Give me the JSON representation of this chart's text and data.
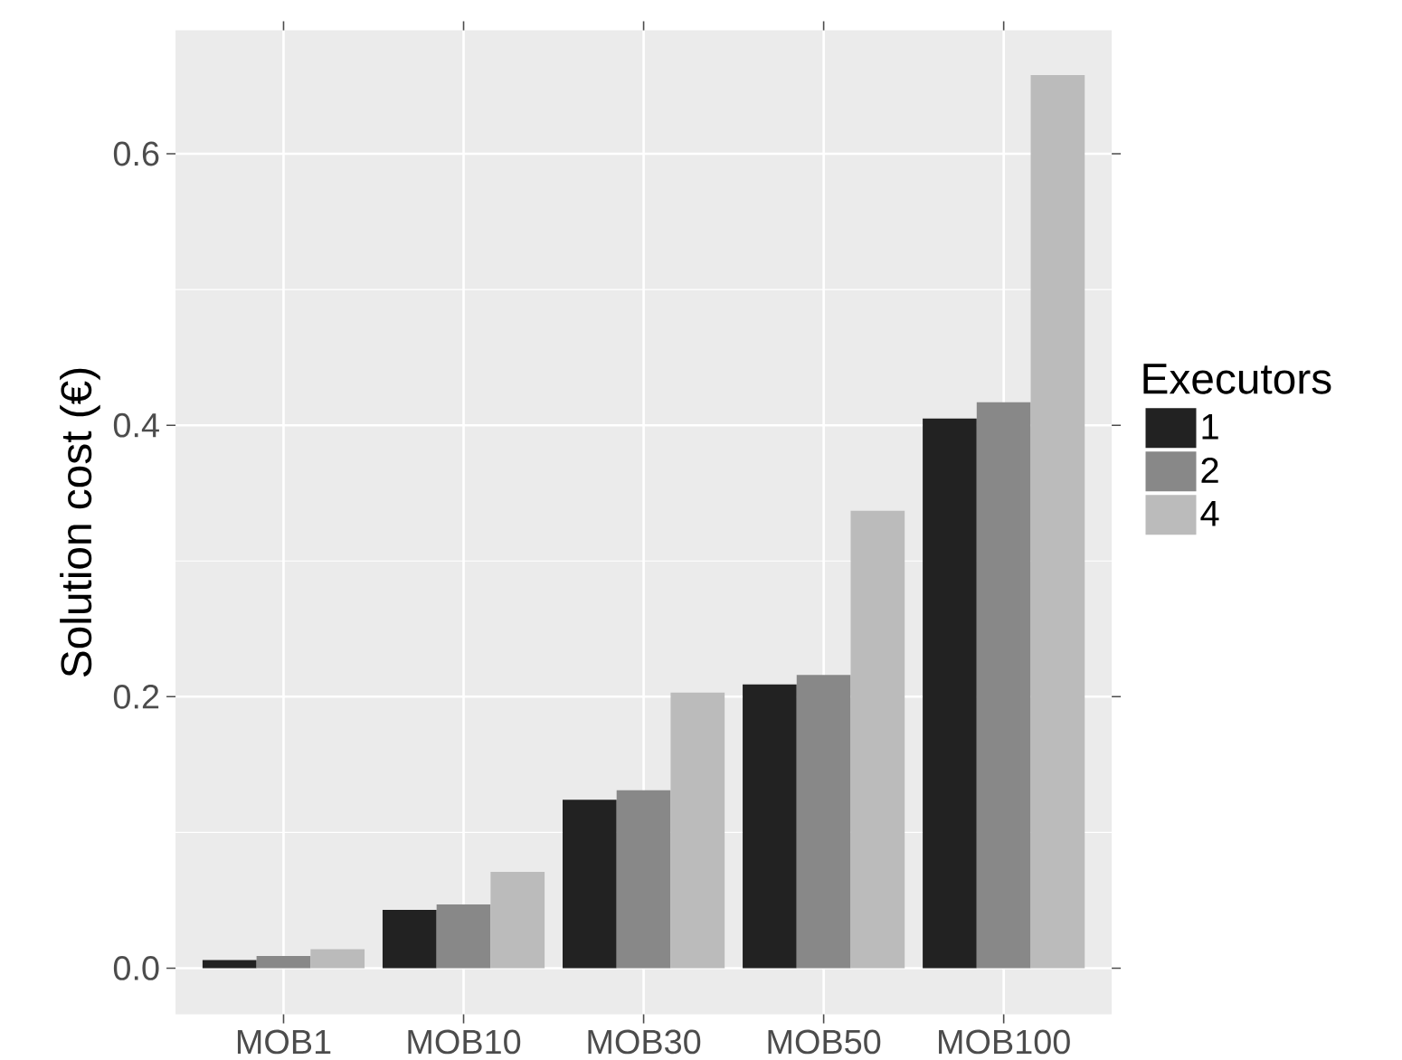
{
  "chart_data": {
    "type": "bar",
    "ylabel": "Solution cost (€)",
    "legend_title": "Executors",
    "categories": [
      "MOB1",
      "MOB10",
      "MOB30",
      "MOB50",
      "MOB100"
    ],
    "series": [
      {
        "name": "1",
        "color": "#222222",
        "values": [
          0.006,
          0.043,
          0.124,
          0.209,
          0.405
        ]
      },
      {
        "name": "2",
        "color": "#888888",
        "values": [
          0.009,
          0.047,
          0.131,
          0.216,
          0.417
        ]
      },
      {
        "name": "4",
        "color": "#bbbbbb",
        "values": [
          0.014,
          0.071,
          0.203,
          0.337,
          0.658
        ]
      }
    ],
    "ylim": [
      -0.034,
      0.691
    ],
    "yticks": [
      {
        "value": 0,
        "label": "0.0"
      },
      0.2,
      0.4,
      0.6
    ],
    "grid": true,
    "legend": "right"
  }
}
